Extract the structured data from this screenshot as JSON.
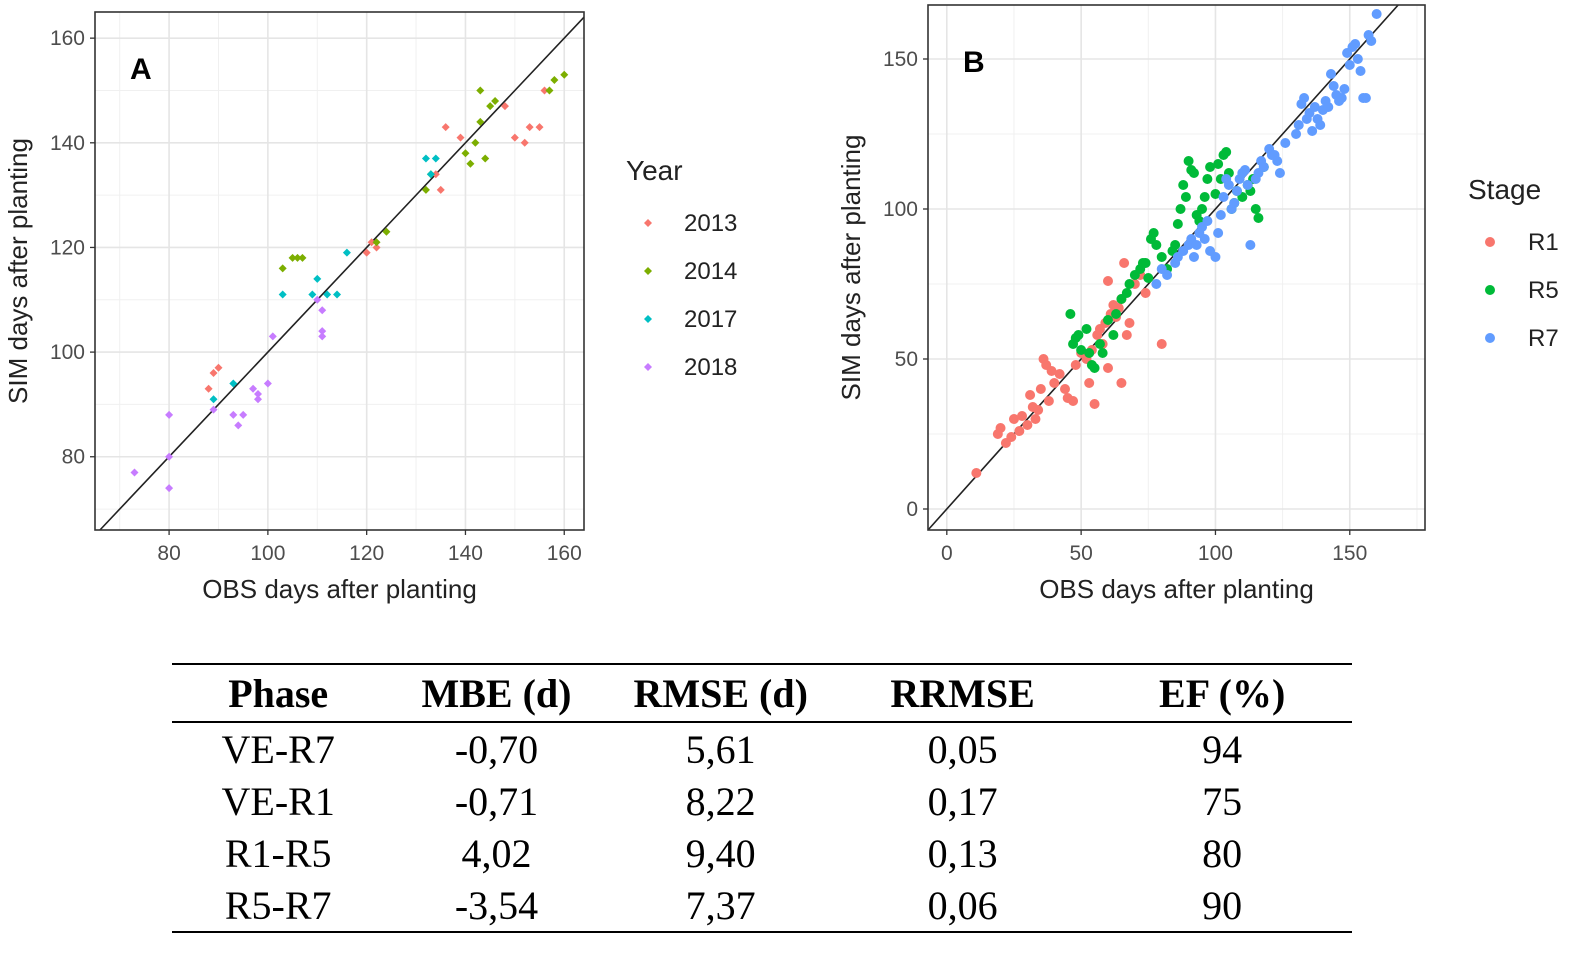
{
  "chart_data": [
    {
      "type": "scatter",
      "panel_label": "A",
      "xlabel": "OBS days after planting",
      "ylabel": "SIM  days after planting",
      "xlim": [
        65,
        164
      ],
      "ylim": [
        66,
        165
      ],
      "xticks": [
        80,
        100,
        120,
        140,
        160
      ],
      "yticks": [
        80,
        100,
        120,
        140,
        160
      ],
      "grid": true,
      "reference_line": "1:1",
      "legend": {
        "title": "Year",
        "placement": "right"
      },
      "series": [
        {
          "name": "2013",
          "color": "#F8766D",
          "points": [
            [
              88,
              93
            ],
            [
              89,
              96
            ],
            [
              90,
              97
            ],
            [
              120,
              119
            ],
            [
              121,
              121
            ],
            [
              122,
              120
            ],
            [
              134,
              134
            ],
            [
              135,
              131
            ],
            [
              136,
              143
            ],
            [
              139,
              141
            ],
            [
              148,
              147
            ],
            [
              150,
              141
            ],
            [
              152,
              140
            ],
            [
              153,
              143
            ],
            [
              155,
              143
            ],
            [
              156,
              150
            ]
          ]
        },
        {
          "name": "2014",
          "color": "#7CAE00",
          "points": [
            [
              103,
              116
            ],
            [
              105,
              118
            ],
            [
              106,
              118
            ],
            [
              107,
              118
            ],
            [
              122,
              121
            ],
            [
              124,
              123
            ],
            [
              132,
              131
            ],
            [
              133,
              134
            ],
            [
              140,
              138
            ],
            [
              141,
              136
            ],
            [
              142,
              140
            ],
            [
              143,
              144
            ],
            [
              143,
              150
            ],
            [
              144,
              137
            ],
            [
              145,
              147
            ],
            [
              146,
              148
            ],
            [
              157,
              150
            ],
            [
              158,
              152
            ],
            [
              160,
              153
            ]
          ]
        },
        {
          "name": "2017",
          "color": "#00BFC4",
          "points": [
            [
              89,
              91
            ],
            [
              93,
              94
            ],
            [
              103,
              111
            ],
            [
              109,
              111
            ],
            [
              110,
              114
            ],
            [
              112,
              111
            ],
            [
              114,
              111
            ],
            [
              116,
              119
            ],
            [
              132,
              137
            ],
            [
              133,
              134
            ],
            [
              134,
              137
            ]
          ]
        },
        {
          "name": "2018",
          "color": "#C77CFF",
          "points": [
            [
              73,
              77
            ],
            [
              80,
              88
            ],
            [
              80,
              80
            ],
            [
              80,
              74
            ],
            [
              89,
              89
            ],
            [
              93,
              88
            ],
            [
              94,
              86
            ],
            [
              95,
              88
            ],
            [
              97,
              93
            ],
            [
              98,
              92
            ],
            [
              98,
              91
            ],
            [
              100,
              94
            ],
            [
              101,
              103
            ],
            [
              110,
              110
            ],
            [
              111,
              108
            ],
            [
              111,
              104
            ],
            [
              111,
              103
            ]
          ]
        }
      ]
    },
    {
      "type": "scatter",
      "panel_label": "B",
      "xlabel": "OBS days after planting",
      "ylabel": "SIM  days after planting",
      "xlim": [
        -7,
        178
      ],
      "ylim": [
        -7,
        168
      ],
      "xticks": [
        0,
        50,
        100,
        150
      ],
      "yticks": [
        0,
        50,
        100,
        150
      ],
      "grid": true,
      "reference_line": "1:1",
      "legend": {
        "title": "Stage",
        "placement": "right"
      },
      "series": [
        {
          "name": "R1",
          "color": "#F8766D",
          "points": [
            [
              11,
              12
            ],
            [
              19,
              25
            ],
            [
              20,
              27
            ],
            [
              22,
              22
            ],
            [
              24,
              24
            ],
            [
              25,
              30
            ],
            [
              27,
              26
            ],
            [
              28,
              31
            ],
            [
              30,
              28
            ],
            [
              31,
              38
            ],
            [
              32,
              34
            ],
            [
              33,
              30
            ],
            [
              34,
              33
            ],
            [
              35,
              40
            ],
            [
              36,
              50
            ],
            [
              37,
              48
            ],
            [
              38,
              36
            ],
            [
              39,
              46
            ],
            [
              40,
              42
            ],
            [
              42,
              45
            ],
            [
              44,
              40
            ],
            [
              45,
              37
            ],
            [
              47,
              36
            ],
            [
              48,
              48
            ],
            [
              50,
              52
            ],
            [
              52,
              50
            ],
            [
              54,
              53
            ],
            [
              56,
              58
            ],
            [
              57,
              60
            ],
            [
              58,
              55
            ],
            [
              59,
              62
            ],
            [
              60,
              47
            ],
            [
              61,
              65
            ],
            [
              62,
              68
            ],
            [
              63,
              64
            ],
            [
              64,
              67
            ],
            [
              65,
              70
            ],
            [
              67,
              58
            ],
            [
              68,
              62
            ],
            [
              70,
              75
            ],
            [
              72,
              78
            ],
            [
              74,
              72
            ],
            [
              60,
              76
            ],
            [
              66,
              82
            ],
            [
              55,
              35
            ],
            [
              53,
              42
            ],
            [
              65,
              42
            ],
            [
              80,
              55
            ]
          ]
        },
        {
          "name": "R5",
          "color": "#00BA38",
          "points": [
            [
              46,
              65
            ],
            [
              47,
              55
            ],
            [
              48,
              57
            ],
            [
              49,
              58
            ],
            [
              50,
              53
            ],
            [
              52,
              60
            ],
            [
              53,
              52
            ],
            [
              54,
              48
            ],
            [
              55,
              47
            ],
            [
              57,
              55
            ],
            [
              58,
              52
            ],
            [
              60,
              63
            ],
            [
              62,
              58
            ],
            [
              63,
              65
            ],
            [
              65,
              70
            ],
            [
              67,
              72
            ],
            [
              68,
              75
            ],
            [
              70,
              78
            ],
            [
              72,
              80
            ],
            [
              73,
              82
            ],
            [
              74,
              82
            ],
            [
              75,
              77
            ],
            [
              76,
              90
            ],
            [
              77,
              92
            ],
            [
              78,
              88
            ],
            [
              80,
              84
            ],
            [
              82,
              80
            ],
            [
              84,
              86
            ],
            [
              85,
              88
            ],
            [
              86,
              95
            ],
            [
              87,
              100
            ],
            [
              88,
              108
            ],
            [
              89,
              104
            ],
            [
              90,
              116
            ],
            [
              91,
              113
            ],
            [
              92,
              112
            ],
            [
              93,
              98
            ],
            [
              94,
              96
            ],
            [
              95,
              100
            ],
            [
              96,
              104
            ],
            [
              97,
              110
            ],
            [
              98,
              114
            ],
            [
              100,
              105
            ],
            [
              101,
              115
            ],
            [
              102,
              110
            ],
            [
              103,
              118
            ],
            [
              104,
              119
            ],
            [
              105,
              112
            ],
            [
              106,
              100
            ],
            [
              107,
              102
            ],
            [
              108,
              106
            ],
            [
              110,
              104
            ],
            [
              112,
              108
            ],
            [
              113,
              106
            ],
            [
              114,
              110
            ],
            [
              115,
              100
            ],
            [
              116,
              97
            ],
            [
              118,
              114
            ]
          ]
        },
        {
          "name": "R7",
          "color": "#619CFF",
          "points": [
            [
              78,
              75
            ],
            [
              80,
              80
            ],
            [
              82,
              78
            ],
            [
              85,
              82
            ],
            [
              86,
              84
            ],
            [
              88,
              86
            ],
            [
              90,
              88
            ],
            [
              91,
              90
            ],
            [
              92,
              84
            ],
            [
              93,
              88
            ],
            [
              94,
              92
            ],
            [
              95,
              94
            ],
            [
              96,
              90
            ],
            [
              97,
              96
            ],
            [
              98,
              86
            ],
            [
              100,
              84
            ],
            [
              101,
              92
            ],
            [
              102,
              98
            ],
            [
              103,
              104
            ],
            [
              104,
              110
            ],
            [
              105,
              108
            ],
            [
              106,
              100
            ],
            [
              107,
              102
            ],
            [
              108,
              106
            ],
            [
              109,
              110
            ],
            [
              110,
              112
            ],
            [
              111,
              113
            ],
            [
              112,
              108
            ],
            [
              113,
              88
            ],
            [
              115,
              110
            ],
            [
              116,
              112
            ],
            [
              117,
              116
            ],
            [
              118,
              114
            ],
            [
              120,
              120
            ],
            [
              121,
              118
            ],
            [
              122,
              118
            ],
            [
              123,
              116
            ],
            [
              124,
              112
            ],
            [
              126,
              122
            ],
            [
              130,
              125
            ],
            [
              131,
              128
            ],
            [
              132,
              135
            ],
            [
              133,
              137
            ],
            [
              134,
              130
            ],
            [
              135,
              132
            ],
            [
              136,
              126
            ],
            [
              137,
              134
            ],
            [
              138,
              130
            ],
            [
              139,
              128
            ],
            [
              140,
              133
            ],
            [
              141,
              136
            ],
            [
              142,
              134
            ],
            [
              143,
              145
            ],
            [
              144,
              141
            ],
            [
              145,
              138
            ],
            [
              146,
              136
            ],
            [
              147,
              137
            ],
            [
              148,
              140
            ],
            [
              149,
              152
            ],
            [
              150,
              148
            ],
            [
              151,
              154
            ],
            [
              152,
              155
            ],
            [
              153,
              150
            ],
            [
              154,
              146
            ],
            [
              155,
              137
            ],
            [
              156,
              137
            ],
            [
              157,
              158
            ],
            [
              158,
              156
            ],
            [
              160,
              165
            ]
          ]
        }
      ]
    }
  ],
  "table": {
    "headers": [
      "Phase",
      "MBE (d)",
      "RMSE (d)",
      "RRMSE",
      "EF (%)"
    ],
    "rows": [
      [
        "VE-R7",
        "-0,70",
        "5,61",
        "0,05",
        "94"
      ],
      [
        "VE-R1",
        "-0,71",
        "8,22",
        "0,17",
        "75"
      ],
      [
        "R1-R5",
        "4,02",
        "9,40",
        "0,13",
        "80"
      ],
      [
        "R5-R7",
        "-3,54",
        "7,37",
        "0,06",
        "90"
      ]
    ]
  }
}
